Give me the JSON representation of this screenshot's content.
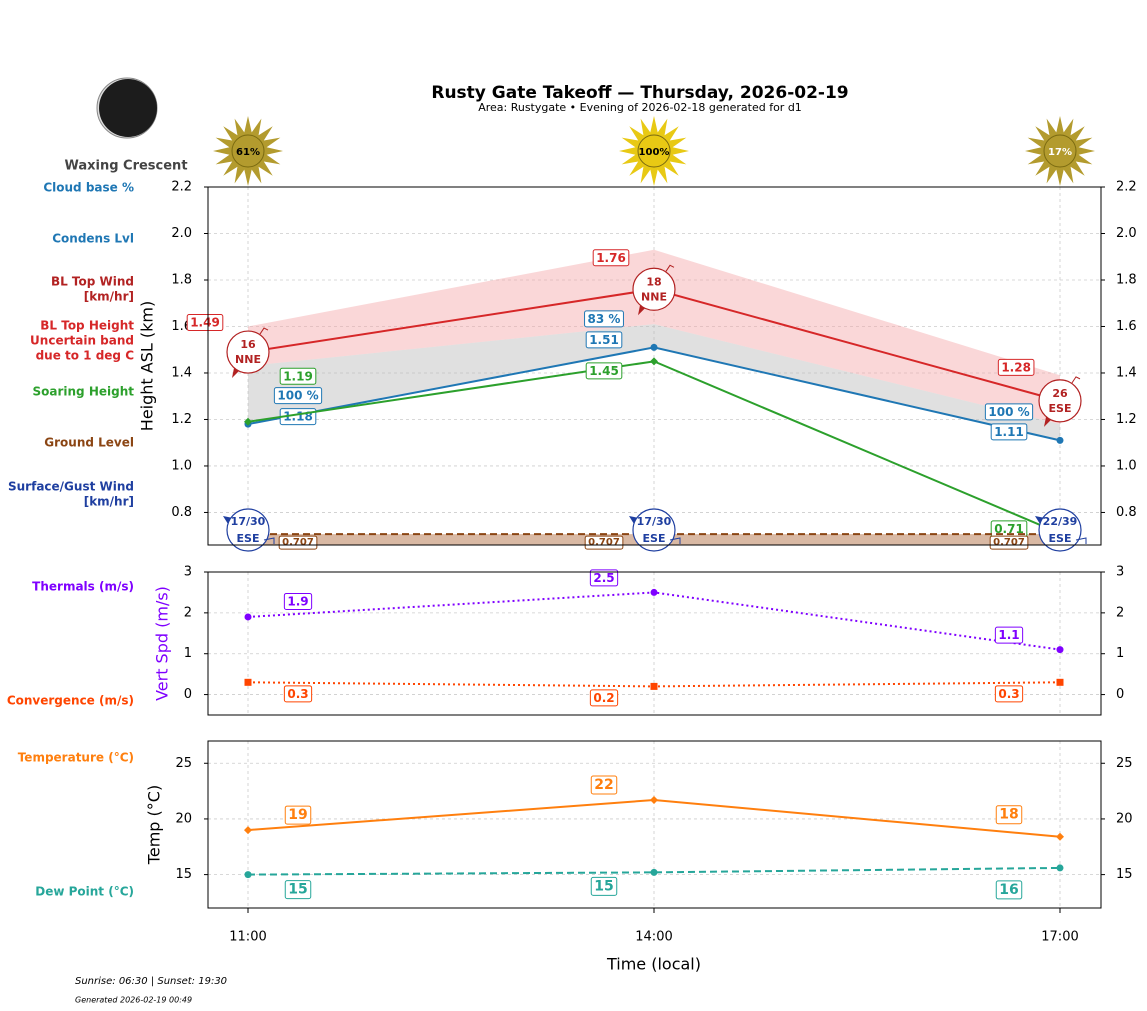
{
  "header": {
    "title": "Rusty Gate Takeoff — Thursday, 2026-02-19",
    "subtitle": "Area: Rustygate • Evening of 2026-02-18 generated for d1"
  },
  "moon": {
    "phase": "Waxing Crescent"
  },
  "row_labels": [
    {
      "lines": [
        "Cloud base %"
      ],
      "color": "#1f77b4"
    },
    {
      "lines": [
        "Condens Lvl"
      ],
      "color": "#1f77b4"
    },
    {
      "lines": [
        "BL Top Wind",
        "[km/hr]"
      ],
      "color": "#b22222"
    },
    {
      "lines": [
        "BL Top Height",
        "Uncertain band",
        "due to 1 deg C"
      ],
      "color": "#d62728"
    },
    {
      "lines": [
        "Soaring Height"
      ],
      "color": "#2ca02c"
    },
    {
      "lines": [
        "Ground Level"
      ],
      "color": "#8b4513"
    },
    {
      "lines": [
        "Surface/Gust Wind",
        "[km/hr]"
      ],
      "color": "#1f3fa0"
    },
    {
      "lines": [
        "Thermals (m/s)"
      ],
      "color": "#7f00ff"
    },
    {
      "lines": [
        "Convergence (m/s)"
      ],
      "color": "#ff4500"
    },
    {
      "lines": [
        "Temperature (°C)"
      ],
      "color": "#ff7f0e"
    },
    {
      "lines": [
        "Dew Point (°C)"
      ],
      "color": "#26a69a"
    }
  ],
  "footer": {
    "sun_times": "Sunrise: 06:30 | Sunset: 19:30",
    "generated": "Generated 2026-02-19 00:49"
  },
  "chart_data": [
    {
      "type": "line",
      "ylabel": "Height ASL (km)",
      "ylim": [
        0.66,
        2.2
      ],
      "yticks": [
        0.8,
        {
          "value": 1,
          "label": "1.0"
        },
        1.2,
        1.4,
        1.6,
        1.8,
        {
          "value": 2,
          "label": "2.0"
        },
        2.2
      ],
      "grid": true,
      "band": {
        "upper": [
          1.6,
          1.93,
          1.39
        ],
        "lower": [
          1.43,
          1.61,
          1.18
        ],
        "color": "#f4a6a8"
      },
      "series": [
        {
          "color": "#d62728",
          "values": [
            1.49,
            1.76,
            1.28
          ],
          "marker": "none"
        },
        {
          "color": "#1f77b4",
          "values": [
            1.18,
            1.51,
            1.11
          ],
          "marker": "circle"
        },
        {
          "color": "#2ca02c",
          "values": [
            1.19,
            1.45,
            0.71
          ],
          "marker": "diamond"
        },
        {
          "color": "#8b4513",
          "values": [
            0.707,
            0.707,
            0.707
          ],
          "marker": "none",
          "dash": true
        }
      ],
      "cloud_base": {
        "values": [
          100,
          83,
          100
        ],
        "value_labels": [
          "100 %",
          "83 %",
          "100 %"
        ],
        "color": "#1f77b4"
      },
      "sun_cover": {
        "values": [
          61,
          100,
          17
        ],
        "value_labels": [
          "61%",
          "100%",
          "17%"
        ],
        "colors": [
          "#b39b2e",
          "#e8c914",
          "#b39b2e"
        ]
      },
      "bl_top_wind": {
        "speed": [
          16,
          18,
          26
        ],
        "direction": [
          "NNE",
          "NNE",
          "ESE"
        ],
        "color": "#b22222"
      },
      "surface_wind": {
        "speed": [
          17,
          17,
          22
        ],
        "gust": [
          30,
          30,
          39
        ],
        "labels": [
          "17/30",
          "17/30",
          "22/39"
        ],
        "direction": [
          "ESE",
          "ESE",
          "ESE"
        ],
        "color": "#1f3fa0"
      }
    },
    {
      "type": "line",
      "ylabel": "Vert Spd (m/s)",
      "ylabel_color": "#7f00ff",
      "ylim": [
        -0.5,
        3
      ],
      "yticks": [
        0,
        1,
        2,
        3
      ],
      "grid": true,
      "series": [
        {
          "color": "#7f00ff",
          "values": [
            1.9,
            2.5,
            1.1
          ],
          "marker": "circle",
          "dot": true
        },
        {
          "color": "#ff4500",
          "values": [
            0.3,
            0.2,
            0.3
          ],
          "marker": "square",
          "dot": true
        }
      ]
    },
    {
      "type": "line",
      "ylabel": "Temp (°C)",
      "xlabel": "Time (local)",
      "categories": [
        "11:00",
        "14:00",
        "17:00"
      ],
      "ylim": [
        12,
        27
      ],
      "yticks": [
        15,
        20,
        25
      ],
      "grid": true,
      "series": [
        {
          "color": "#ff7f0e",
          "values": [
            19,
            21.7,
            18.4
          ],
          "value_labels": [
            "19",
            "22",
            "18"
          ],
          "marker": "diamond"
        },
        {
          "color": "#26a69a",
          "values": [
            15,
            15.2,
            15.6
          ],
          "value_labels": [
            "15",
            "15",
            "16"
          ],
          "marker": "circle",
          "dash": true
        }
      ]
    }
  ]
}
